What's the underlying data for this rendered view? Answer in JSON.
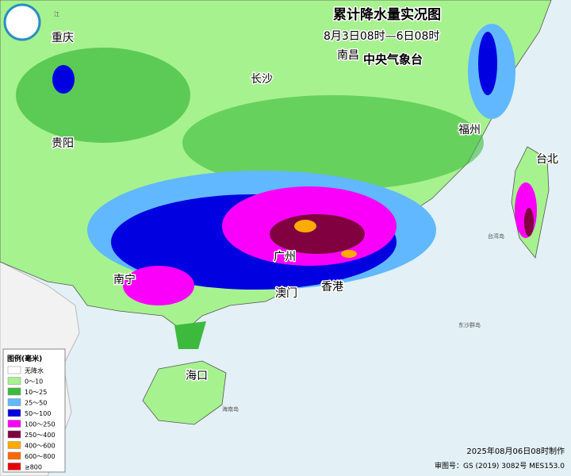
{
  "header": {
    "title": "累计降水量实况图",
    "subtitle": "8月3日08时—6日08时",
    "agency": "中央气象台"
  },
  "map": {
    "cities": [
      "重庆",
      "长沙",
      "南昌",
      "贵阳",
      "福州",
      "台北",
      "南宁",
      "广州",
      "澳门",
      "香港",
      "海口"
    ],
    "minor_labels": [
      "江",
      "台湾岛",
      "东沙群岛",
      "海南岛"
    ]
  },
  "legend": {
    "title": "图例(毫米)",
    "items": [
      {
        "label": "无降水",
        "color": "#ffffff"
      },
      {
        "label": "0～10",
        "color": "#a6f28f"
      },
      {
        "label": "10～25",
        "color": "#3dba3d"
      },
      {
        "label": "25～50",
        "color": "#61b8ff"
      },
      {
        "label": "50～100",
        "color": "#0000e1"
      },
      {
        "label": "100～250",
        "color": "#fa00fa"
      },
      {
        "label": "250～400",
        "color": "#800040"
      },
      {
        "label": "400～600",
        "color": "#ffaa00"
      },
      {
        "label": "600～800",
        "color": "#ff6600"
      },
      {
        "label": "≥800",
        "color": "#e60000"
      }
    ]
  },
  "footer": {
    "made": "2025年08月06日08时制作",
    "approval": "审图号：GS (2019) 3082号 MES153.0"
  }
}
